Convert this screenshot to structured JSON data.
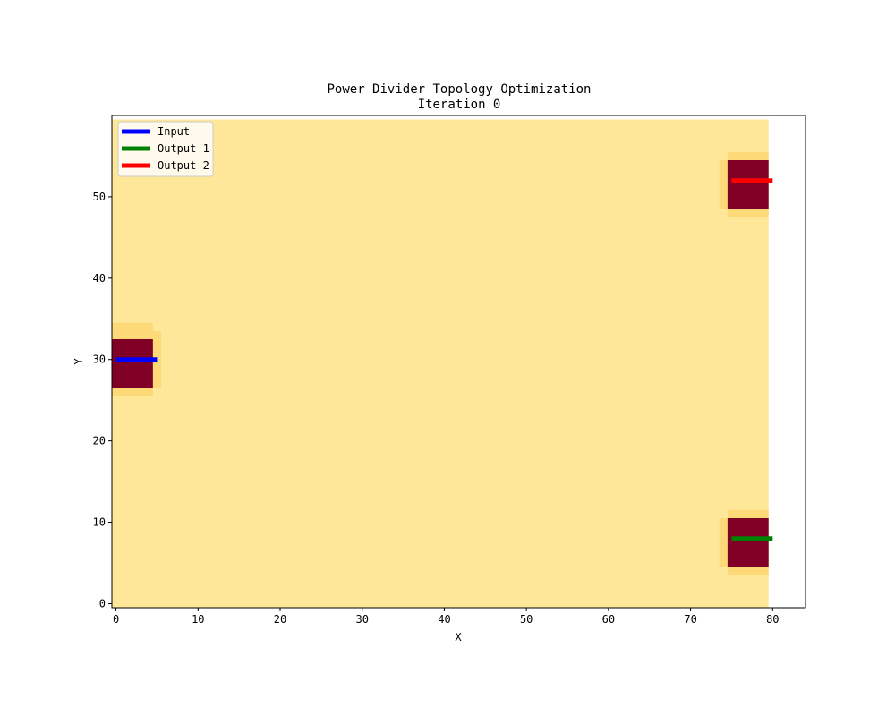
{
  "chart_data": {
    "type": "heatmap",
    "title": "Power Divider Topology Optimization",
    "subtitle": "Iteration 0",
    "xlabel": "X",
    "ylabel": "Y",
    "xlim": [
      -0.5,
      84
    ],
    "ylim": [
      -0.5,
      60
    ],
    "xticks": [
      0,
      10,
      20,
      30,
      40,
      50,
      60,
      70,
      80
    ],
    "yticks": [
      0,
      10,
      20,
      30,
      40,
      50
    ],
    "grid": false,
    "legend_position": "top-left",
    "density_field": {
      "extent": {
        "x": [
          -0.5,
          79.5
        ],
        "y": [
          -0.5,
          59.5
        ]
      },
      "background_color": "#fee799",
      "regions": [
        {
          "name": "input-port-halo",
          "x": [
            -0.5,
            4.5
          ],
          "y": [
            25.5,
            34.5
          ],
          "color": "#fed977"
        },
        {
          "name": "input-port-halo-edge",
          "x": [
            4.5,
            5.5
          ],
          "y": [
            26.5,
            33.5
          ],
          "color": "#fed977"
        },
        {
          "name": "input-port-solid",
          "x": [
            -0.5,
            4.5
          ],
          "y": [
            26.5,
            32.5
          ],
          "color": "#800026"
        },
        {
          "name": "output1-port-halo",
          "x": [
            74.5,
            79.5
          ],
          "y": [
            3.5,
            11.5
          ],
          "color": "#fed977"
        },
        {
          "name": "output1-port-halo-edge",
          "x": [
            73.5,
            74.5
          ],
          "y": [
            4.5,
            10.5
          ],
          "color": "#fed977"
        },
        {
          "name": "output1-port-solid",
          "x": [
            74.5,
            79.5
          ],
          "y": [
            4.5,
            10.5
          ],
          "color": "#800026"
        },
        {
          "name": "output2-port-halo",
          "x": [
            74.5,
            79.5
          ],
          "y": [
            47.5,
            55.5
          ],
          "color": "#fed977"
        },
        {
          "name": "output2-port-halo-edge",
          "x": [
            73.5,
            74.5
          ],
          "y": [
            48.5,
            54.5
          ],
          "color": "#fed977"
        },
        {
          "name": "output2-port-solid",
          "x": [
            74.5,
            79.5
          ],
          "y": [
            48.5,
            54.5
          ],
          "color": "#800026"
        }
      ]
    },
    "series": [
      {
        "name": "Input",
        "color": "#0000ff",
        "x": [
          0,
          5
        ],
        "y": [
          30,
          30
        ]
      },
      {
        "name": "Output 1",
        "color": "#008000",
        "x": [
          75,
          80
        ],
        "y": [
          8,
          8
        ]
      },
      {
        "name": "Output 2",
        "color": "#ff0000",
        "x": [
          75,
          80
        ],
        "y": [
          52,
          52
        ]
      }
    ]
  }
}
